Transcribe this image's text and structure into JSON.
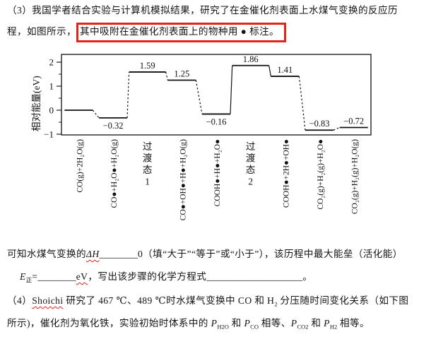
{
  "question3": {
    "line1": "（3）我国学者结合实验与计算机模拟结果，研究了在金催化剂表面上水煤气变换的反应历",
    "line2_prefix": "程，如图所示，",
    "line2_highlight": "其中吸附在金催化剂表面上的物种用 ● 标注。"
  },
  "annotation": {
    "highlight_box_color": "#e02419"
  },
  "chart_data": {
    "type": "line",
    "subtype": "reaction-energy-profile",
    "ylabel": "相对能量(eV)",
    "ylim": [
      -1,
      2.4
    ],
    "yticks": [
      -1,
      0,
      1,
      2
    ],
    "yticks_minor": [
      -0.5,
      0.5,
      1.5
    ],
    "grid": false,
    "stages": [
      {
        "label": "CO(g)+2H₂O(g)",
        "energy": 0,
        "value_label": null,
        "value_pos": null,
        "label_style": "rotated"
      },
      {
        "label": "CO●+H₂O●+H₂O(g)",
        "energy": -0.32,
        "value_label": "−0.32",
        "value_pos": "below",
        "label_style": "rotated"
      },
      {
        "label": "过渡态1",
        "energy": 1.59,
        "value_label": "1.59",
        "value_pos": "above",
        "label_style": "vertical-cjk",
        "wide": true
      },
      {
        "label": "CO●+OH●+H●+H₂O(g)",
        "energy": 1.25,
        "value_label": "1.25",
        "value_pos": "above",
        "label_style": "rotated"
      },
      {
        "label": "COOH●+H●+H₂O●",
        "energy": -0.16,
        "value_label": "−0.16",
        "value_pos": "below",
        "label_style": "rotated"
      },
      {
        "label": "过渡态2",
        "energy": 1.86,
        "value_label": "1.86",
        "value_pos": "above",
        "label_style": "vertical-cjk",
        "wide": true
      },
      {
        "label": "COOH●+2H●+OH●",
        "energy": 1.41,
        "value_label": "1.41",
        "value_pos": "above",
        "label_style": "rotated"
      },
      {
        "label": "CO₂(g)+H₂(g)+H₂O●",
        "energy": -0.83,
        "value_label": "−0.83",
        "value_pos": "above",
        "label_style": "rotated"
      },
      {
        "label": "CO₂(g)+H₂(g)+H₂O(g)",
        "energy": -0.72,
        "value_label": "−0.72",
        "value_pos": "above",
        "label_style": "rotated"
      }
    ],
    "connector_styles": [
      "dashed",
      "dashed",
      "dashed",
      "dashed",
      "solid",
      "solid",
      "dashed",
      "dashed"
    ]
  },
  "question_dh": {
    "lead": "可知水煤气变换的",
    "delta_h": "ΔH",
    "blank1": "________",
    "after_blank": "0（填“大于”“等于”或“小于”），该历程中最大能垒（活化能）",
    "e_symbol": "E",
    "e_sub": "正",
    "equals": "=",
    "blank2": "________",
    "unit": "eV",
    "mid": "，写出该步骤的化学方程式",
    "blank3": "____________________",
    "period": "。"
  },
  "question4": {
    "open": "（4）",
    "researcher": "Shoichi",
    "line1_mid": " 研究了 467 ℃、489 ℃时水煤气变换中 CO 和 H",
    "h2_sub": "2",
    "line1_end": " 分压随时间变化关系（如下图",
    "line2_start": "所示)，催化剂为氧化铁，实验初始时体系中的 ",
    "p_symbol": "P",
    "sub_h2o": "H2O",
    "and1": " 和 ",
    "sub_co": "CO",
    "equal1": " 相等、",
    "sub_co2": "CO2",
    "and2": " 和 ",
    "sub_h2": "H2",
    "equal2": " 相等。"
  }
}
